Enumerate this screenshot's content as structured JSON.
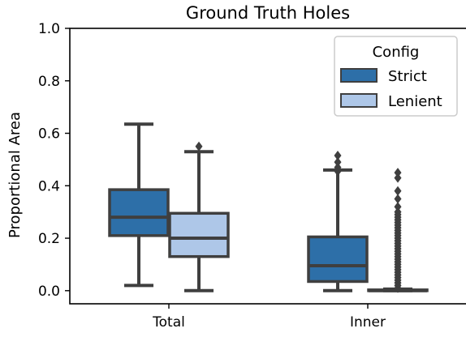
{
  "chart_data": {
    "type": "box",
    "title": "Ground Truth Holes",
    "xlabel": "",
    "ylabel": "Proportional Area",
    "ylim": [
      -0.05,
      1.0
    ],
    "yticks": [
      0.0,
      0.2,
      0.4,
      0.6,
      0.8,
      1.0
    ],
    "ytick_labels": [
      "0.0",
      "0.2",
      "0.4",
      "0.6",
      "0.8",
      "1.0"
    ],
    "categories": [
      "Total",
      "Inner"
    ],
    "grid": false,
    "legend": {
      "title": "Config",
      "placement": "top-right"
    },
    "series": [
      {
        "name": "Strict",
        "color": "#2d6fa8",
        "boxes": [
          {
            "whisker_low": 0.02,
            "q1": 0.21,
            "median": 0.28,
            "q3": 0.385,
            "whisker_high": 0.635,
            "outliers": []
          },
          {
            "whisker_low": 0.0,
            "q1": 0.035,
            "median": 0.095,
            "q3": 0.205,
            "whisker_high": 0.46,
            "outliers": [
              0.455,
              0.47,
              0.49,
              0.515
            ]
          }
        ]
      },
      {
        "name": "Lenient",
        "color": "#aec7e8",
        "boxes": [
          {
            "whisker_low": 0.0,
            "q1": 0.13,
            "median": 0.2,
            "q3": 0.295,
            "whisker_high": 0.53,
            "outliers": [
              0.55
            ]
          },
          {
            "whisker_low": 0.0,
            "q1": 0.0,
            "median": 0.0,
            "q3": 0.003,
            "whisker_high": 0.006,
            "outliers": [
              0.01,
              0.02,
              0.03,
              0.04,
              0.05,
              0.06,
              0.07,
              0.08,
              0.09,
              0.1,
              0.11,
              0.12,
              0.13,
              0.14,
              0.15,
              0.16,
              0.17,
              0.18,
              0.19,
              0.2,
              0.21,
              0.22,
              0.23,
              0.24,
              0.25,
              0.26,
              0.27,
              0.28,
              0.29,
              0.3,
              0.32,
              0.35,
              0.38,
              0.43,
              0.45
            ]
          }
        ]
      }
    ]
  }
}
